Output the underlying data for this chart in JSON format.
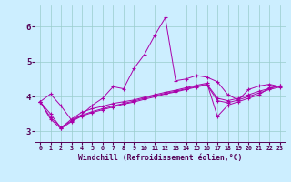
{
  "xlabel": "Windchill (Refroidissement éolien,°C)",
  "background_color": "#cceeff",
  "line_color": "#aa00aa",
  "grid_color": "#99cccc",
  "axis_color": "#550055",
  "tick_color": "#550055",
  "xlim": [
    -0.5,
    23.5
  ],
  "ylim": [
    2.7,
    6.6
  ],
  "xticks": [
    0,
    1,
    2,
    3,
    4,
    5,
    6,
    7,
    8,
    9,
    10,
    11,
    12,
    13,
    14,
    15,
    16,
    17,
    18,
    19,
    20,
    21,
    22,
    23
  ],
  "yticks": [
    3,
    4,
    5,
    6
  ],
  "series": [
    [
      3.85,
      4.07,
      3.73,
      3.33,
      3.48,
      3.75,
      3.95,
      4.28,
      4.22,
      4.8,
      5.2,
      5.75,
      6.25,
      4.45,
      4.5,
      4.6,
      4.55,
      4.42,
      4.05,
      3.9,
      4.2,
      4.3,
      4.35,
      4.28
    ],
    [
      3.85,
      3.5,
      3.1,
      3.35,
      3.55,
      3.65,
      3.72,
      3.8,
      3.85,
      3.9,
      3.98,
      4.05,
      4.12,
      4.18,
      4.25,
      4.32,
      4.38,
      3.43,
      3.75,
      3.85,
      3.95,
      4.05,
      4.25,
      4.3
    ],
    [
      3.85,
      3.35,
      3.08,
      3.28,
      3.44,
      3.54,
      3.62,
      3.7,
      3.78,
      3.84,
      3.92,
      3.99,
      4.07,
      4.13,
      4.2,
      4.27,
      4.33,
      3.88,
      3.82,
      3.9,
      4.0,
      4.1,
      4.2,
      4.27
    ],
    [
      3.85,
      3.4,
      3.12,
      3.3,
      3.46,
      3.57,
      3.65,
      3.73,
      3.8,
      3.87,
      3.95,
      4.02,
      4.09,
      4.15,
      4.22,
      4.29,
      4.35,
      3.95,
      3.88,
      3.95,
      4.05,
      4.15,
      4.23,
      4.3
    ]
  ]
}
